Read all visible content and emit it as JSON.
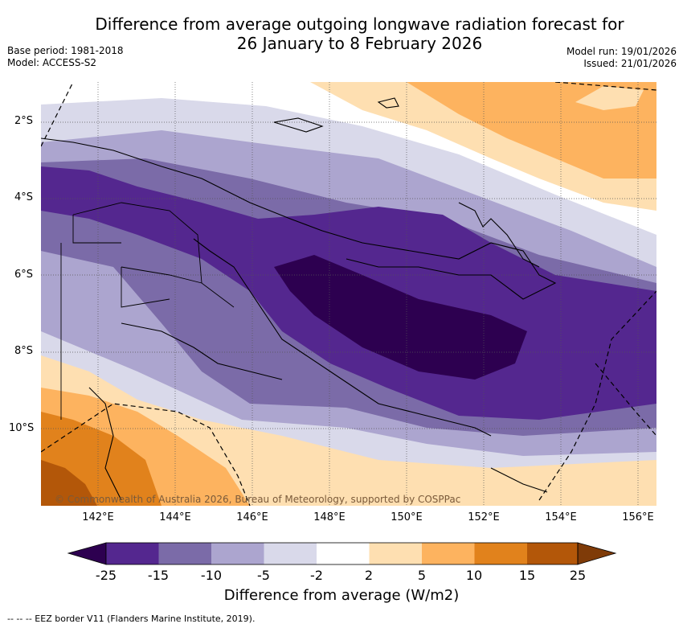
{
  "header": {
    "title_line1": "Difference from average outgoing longwave radiation forecast for",
    "title_line2": "26 January to 8 February 2026",
    "base_period": "Base period: 1981-2018",
    "model": "Model: ACCESS-S2",
    "model_run": "Model run: 19/01/2026",
    "issued": "Issued: 21/01/2026"
  },
  "map": {
    "lat_ticks": [
      "2°S",
      "4°S",
      "6°S",
      "8°S",
      "10°S"
    ],
    "lon_ticks": [
      "142°E",
      "144°E",
      "146°E",
      "148°E",
      "150°E",
      "152°E",
      "154°E",
      "156°E"
    ],
    "copyright": "© Commonwealth of Australia 2026, Bureau of Meteorology, supported by COSPPac"
  },
  "colorbar": {
    "labels": [
      "-25",
      "-15",
      "-10",
      "-5",
      "-2",
      "2",
      "5",
      "10",
      "15",
      "25"
    ],
    "colors": [
      "#2d0050",
      "#54278f",
      "#7b6ba8",
      "#aca5cf",
      "#d9d9ea",
      "#ffffff",
      "#fedfb1",
      "#fdb35f",
      "#e1821c",
      "#b35709",
      "#7f3b08"
    ],
    "title": "Difference from average (W/m2)"
  },
  "footnote": "--  --  -- EEZ border V11 (Flanders Marine Institute, 2019)."
}
